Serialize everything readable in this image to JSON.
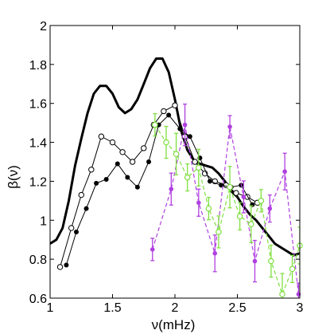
{
  "chart_data": {
    "type": "line",
    "xlabel": "ν(mHz)",
    "ylabel": "β(ν)",
    "xlim": [
      1,
      3
    ],
    "ylim": [
      0.6,
      2
    ],
    "xticks": [
      1,
      1.5,
      2,
      2.5,
      3
    ],
    "xtick_labels": [
      "1",
      "1.5",
      "2",
      "2.5",
      "3"
    ],
    "yticks": [
      0.6,
      0.8,
      1,
      1.2,
      1.4,
      1.6,
      1.8,
      2
    ],
    "ytick_labels": [
      "0.6",
      "0.8",
      "1",
      "1.2",
      "1.4",
      "1.6",
      "1.8",
      "2"
    ],
    "grid": false,
    "colors": {
      "thick": "#000000",
      "open": "#000000",
      "filled": "#000000",
      "magenta": "#b040e0",
      "green": "#7fe040"
    },
    "series": [
      {
        "style": "thick-line",
        "x": [
          1.0,
          1.05,
          1.1,
          1.15,
          1.2,
          1.25,
          1.3,
          1.35,
          1.4,
          1.45,
          1.5,
          1.55,
          1.6,
          1.65,
          1.7,
          1.75,
          1.8,
          1.85,
          1.9,
          1.95,
          2.0,
          2.05,
          2.1,
          2.15,
          2.2,
          2.25,
          2.3,
          2.35,
          2.4,
          2.45,
          2.5,
          2.55,
          2.6,
          2.65,
          2.7,
          2.75,
          2.8,
          2.85,
          2.9,
          2.95,
          3.0
        ],
        "y": [
          0.88,
          0.9,
          0.96,
          1.1,
          1.28,
          1.42,
          1.55,
          1.65,
          1.69,
          1.69,
          1.65,
          1.58,
          1.55,
          1.57,
          1.62,
          1.7,
          1.78,
          1.83,
          1.83,
          1.76,
          1.62,
          1.46,
          1.36,
          1.31,
          1.29,
          1.28,
          1.27,
          1.24,
          1.2,
          1.15,
          1.12,
          1.07,
          1.03,
          1.0,
          0.96,
          0.92,
          0.88,
          0.86,
          0.84,
          0.82,
          0.83
        ]
      },
      {
        "style": "open-circles",
        "x": [
          1.08,
          1.17,
          1.25,
          1.33,
          1.41,
          1.5,
          1.58,
          1.66,
          1.75,
          1.83,
          1.91,
          2.0,
          2.08,
          2.16,
          2.24,
          2.32,
          2.41,
          2.49,
          2.58,
          2.66
        ],
        "y": [
          0.76,
          0.96,
          1.13,
          1.26,
          1.43,
          1.4,
          1.35,
          1.3,
          1.37,
          1.49,
          1.56,
          1.59,
          1.43,
          1.3,
          1.24,
          1.2,
          1.18,
          1.14,
          1.12,
          1.09
        ]
      },
      {
        "style": "filled-circles",
        "x": [
          1.13,
          1.21,
          1.29,
          1.37,
          1.45,
          1.54,
          1.62,
          1.7,
          1.79,
          1.87,
          1.95,
          2.04,
          2.12,
          2.2,
          2.28,
          2.37,
          2.45,
          2.53,
          2.62
        ],
        "y": [
          0.77,
          0.94,
          1.06,
          1.19,
          1.21,
          1.29,
          1.22,
          1.17,
          1.3,
          1.49,
          1.54,
          1.47,
          1.43,
          1.32,
          1.2,
          1.18,
          1.17,
          1.18,
          1.08
        ]
      },
      {
        "style": "magenta-dashed",
        "x": [
          1.82,
          1.97,
          2.08,
          2.19,
          2.32,
          2.44,
          2.55,
          2.64,
          2.76,
          2.88,
          2.99
        ],
        "y": [
          0.85,
          1.16,
          1.49,
          1.09,
          0.83,
          1.48,
          1.12,
          0.79,
          1.06,
          1.25,
          0.62
        ]
      },
      {
        "style": "green-dashed",
        "x": [
          1.84,
          1.93,
          2.01,
          2.1,
          2.19,
          2.27,
          2.35,
          2.44,
          2.52,
          2.61,
          2.69,
          2.77,
          2.86,
          2.94,
          3.0
        ],
        "y": [
          1.49,
          1.4,
          1.34,
          1.22,
          1.27,
          1.06,
          0.94,
          1.17,
          1.02,
          0.98,
          1.1,
          0.79,
          0.62,
          0.75,
          0.87
        ]
      }
    ]
  }
}
